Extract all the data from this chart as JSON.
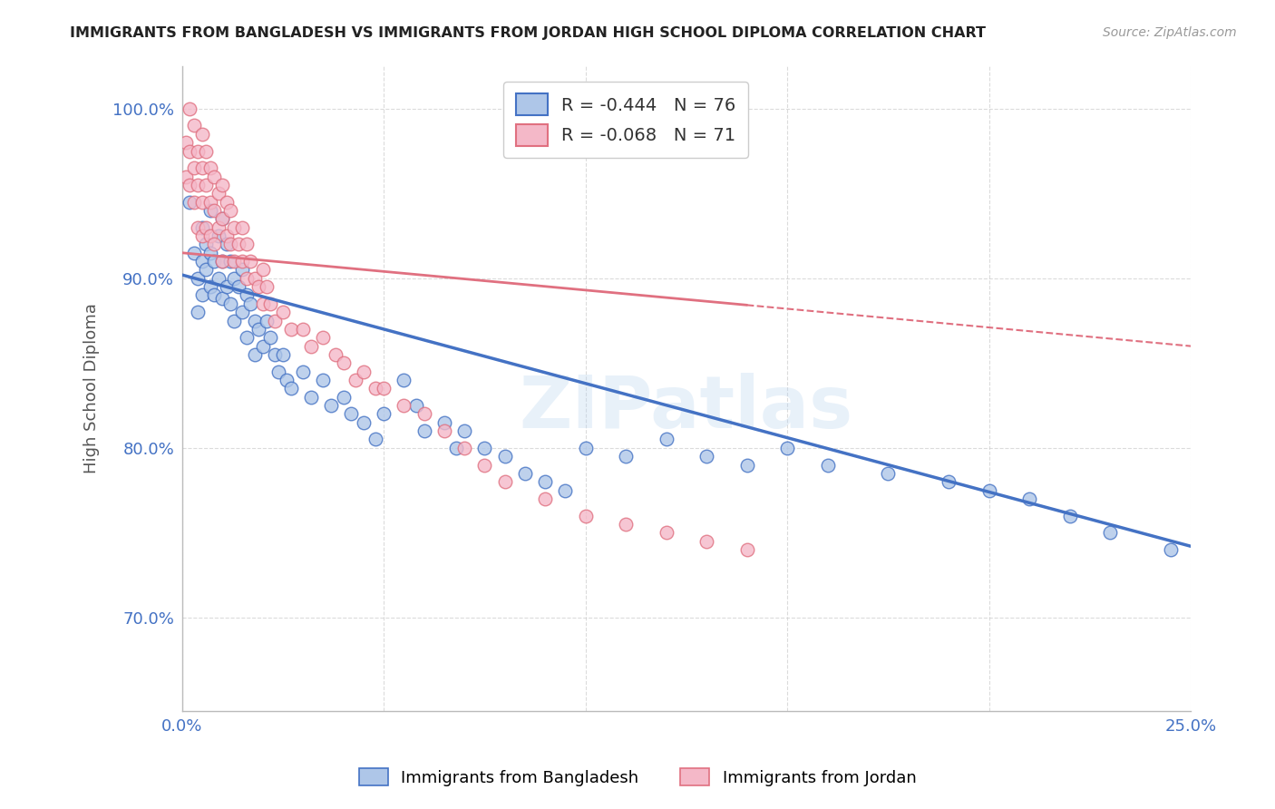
{
  "title": "IMMIGRANTS FROM BANGLADESH VS IMMIGRANTS FROM JORDAN HIGH SCHOOL DIPLOMA CORRELATION CHART",
  "source": "Source: ZipAtlas.com",
  "ylabel": "High School Diploma",
  "ytick_vals": [
    0.7,
    0.8,
    0.9,
    1.0
  ],
  "xlim": [
    0.0,
    0.25
  ],
  "ylim": [
    0.645,
    1.025
  ],
  "legend1_label": "R = -0.444   N = 76",
  "legend2_label": "R = -0.068   N = 71",
  "legend1_color": "#aec6e8",
  "legend2_color": "#f4b8c8",
  "line1_color": "#4472c4",
  "line2_color": "#e07080",
  "scatter1_color": "#aec6e8",
  "scatter2_color": "#f4b8c8",
  "bg_color": "#ffffff",
  "grid_color": "#cccccc",
  "title_color": "#222222",
  "source_color": "#999999",
  "axis_label_color": "#555555",
  "tick_color": "#4472c4",
  "watermark": "ZIPatlas",
  "bangladesh_x": [
    0.002,
    0.003,
    0.004,
    0.004,
    0.005,
    0.005,
    0.005,
    0.006,
    0.006,
    0.007,
    0.007,
    0.007,
    0.008,
    0.008,
    0.009,
    0.009,
    0.01,
    0.01,
    0.01,
    0.011,
    0.011,
    0.012,
    0.012,
    0.013,
    0.013,
    0.014,
    0.015,
    0.015,
    0.016,
    0.016,
    0.017,
    0.018,
    0.018,
    0.019,
    0.02,
    0.021,
    0.022,
    0.023,
    0.024,
    0.025,
    0.026,
    0.027,
    0.03,
    0.032,
    0.035,
    0.037,
    0.04,
    0.042,
    0.045,
    0.048,
    0.05,
    0.055,
    0.058,
    0.06,
    0.065,
    0.068,
    0.07,
    0.075,
    0.08,
    0.085,
    0.09,
    0.095,
    0.1,
    0.11,
    0.12,
    0.13,
    0.14,
    0.15,
    0.16,
    0.175,
    0.19,
    0.2,
    0.21,
    0.22,
    0.23,
    0.245
  ],
  "bangladesh_y": [
    0.945,
    0.915,
    0.9,
    0.88,
    0.93,
    0.91,
    0.89,
    0.92,
    0.905,
    0.94,
    0.915,
    0.895,
    0.91,
    0.89,
    0.925,
    0.9,
    0.935,
    0.91,
    0.888,
    0.92,
    0.895,
    0.91,
    0.885,
    0.9,
    0.875,
    0.895,
    0.905,
    0.88,
    0.89,
    0.865,
    0.885,
    0.875,
    0.855,
    0.87,
    0.86,
    0.875,
    0.865,
    0.855,
    0.845,
    0.855,
    0.84,
    0.835,
    0.845,
    0.83,
    0.84,
    0.825,
    0.83,
    0.82,
    0.815,
    0.805,
    0.82,
    0.84,
    0.825,
    0.81,
    0.815,
    0.8,
    0.81,
    0.8,
    0.795,
    0.785,
    0.78,
    0.775,
    0.8,
    0.795,
    0.805,
    0.795,
    0.79,
    0.8,
    0.79,
    0.785,
    0.78,
    0.775,
    0.77,
    0.76,
    0.75,
    0.74
  ],
  "jordan_x": [
    0.001,
    0.001,
    0.002,
    0.002,
    0.002,
    0.003,
    0.003,
    0.003,
    0.004,
    0.004,
    0.004,
    0.005,
    0.005,
    0.005,
    0.005,
    0.006,
    0.006,
    0.006,
    0.007,
    0.007,
    0.007,
    0.008,
    0.008,
    0.008,
    0.009,
    0.009,
    0.01,
    0.01,
    0.01,
    0.011,
    0.011,
    0.012,
    0.012,
    0.013,
    0.013,
    0.014,
    0.015,
    0.015,
    0.016,
    0.016,
    0.017,
    0.018,
    0.019,
    0.02,
    0.02,
    0.021,
    0.022,
    0.023,
    0.025,
    0.027,
    0.03,
    0.032,
    0.035,
    0.038,
    0.04,
    0.043,
    0.045,
    0.048,
    0.05,
    0.055,
    0.06,
    0.065,
    0.07,
    0.075,
    0.08,
    0.09,
    0.1,
    0.11,
    0.12,
    0.13,
    0.14
  ],
  "jordan_y": [
    0.98,
    0.96,
    1.0,
    0.975,
    0.955,
    0.99,
    0.965,
    0.945,
    0.975,
    0.955,
    0.93,
    0.985,
    0.965,
    0.945,
    0.925,
    0.975,
    0.955,
    0.93,
    0.965,
    0.945,
    0.925,
    0.96,
    0.94,
    0.92,
    0.95,
    0.93,
    0.955,
    0.935,
    0.91,
    0.945,
    0.925,
    0.94,
    0.92,
    0.93,
    0.91,
    0.92,
    0.93,
    0.91,
    0.92,
    0.9,
    0.91,
    0.9,
    0.895,
    0.905,
    0.885,
    0.895,
    0.885,
    0.875,
    0.88,
    0.87,
    0.87,
    0.86,
    0.865,
    0.855,
    0.85,
    0.84,
    0.845,
    0.835,
    0.835,
    0.825,
    0.82,
    0.81,
    0.8,
    0.79,
    0.78,
    0.77,
    0.76,
    0.755,
    0.75,
    0.745,
    0.74
  ]
}
